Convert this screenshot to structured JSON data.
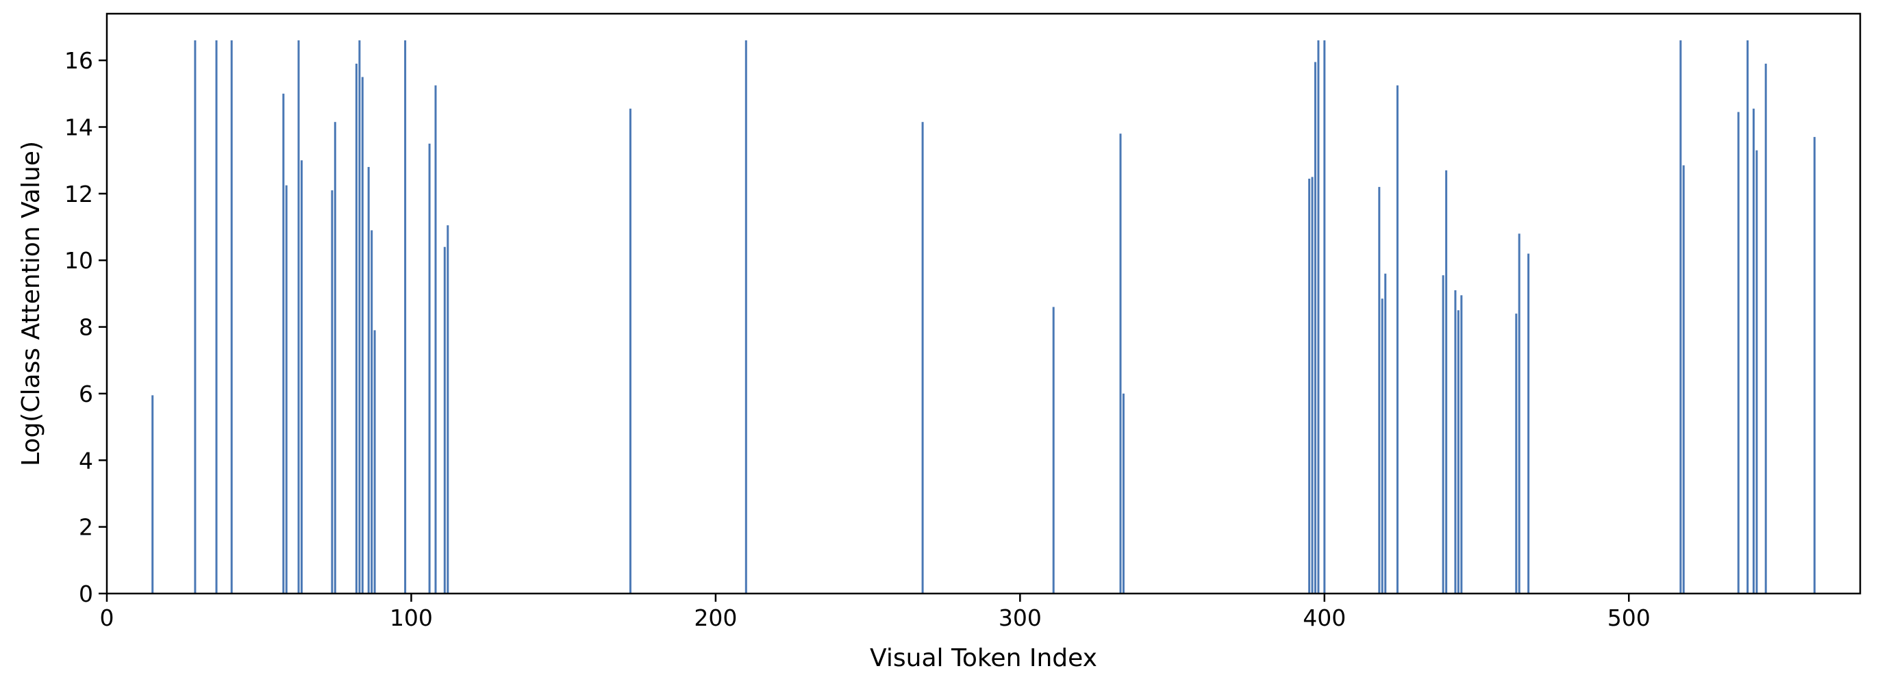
{
  "chart_data": {
    "type": "bar",
    "xlabel": "Visual Token Index",
    "ylabel": "Log(Class Attention Value)",
    "xlim": [
      0,
      576
    ],
    "ylim": [
      0,
      17.4
    ],
    "xticks": [
      0,
      100,
      200,
      300,
      400,
      500
    ],
    "yticks": [
      0,
      2,
      4,
      6,
      8,
      10,
      12,
      14,
      16
    ],
    "grid": false,
    "bar_color": "#4a78b5",
    "x": [
      15,
      29,
      36,
      41,
      58,
      59,
      63,
      64,
      74,
      75,
      82,
      83,
      84,
      86,
      87,
      88,
      98,
      106,
      108,
      111,
      112,
      172,
      210,
      268,
      311,
      333,
      334,
      395,
      396,
      397,
      398,
      400,
      418,
      419,
      420,
      424,
      439,
      440,
      443,
      444,
      445,
      463,
      464,
      467,
      517,
      518,
      536,
      539,
      541,
      542,
      545,
      561
    ],
    "values": [
      5.95,
      16.6,
      16.6,
      16.6,
      15.0,
      12.25,
      16.6,
      13.0,
      12.1,
      14.15,
      15.9,
      16.6,
      15.5,
      12.8,
      10.9,
      7.9,
      16.6,
      13.5,
      15.25,
      10.4,
      11.05,
      14.55,
      16.6,
      14.15,
      8.6,
      13.8,
      6.0,
      12.45,
      12.5,
      15.95,
      16.6,
      16.6,
      12.2,
      8.85,
      9.6,
      15.25,
      9.55,
      12.7,
      9.1,
      8.5,
      8.95,
      8.4,
      10.8,
      10.2,
      16.6,
      12.85,
      14.45,
      16.6,
      14.55,
      13.3,
      15.9,
      13.7
    ]
  }
}
